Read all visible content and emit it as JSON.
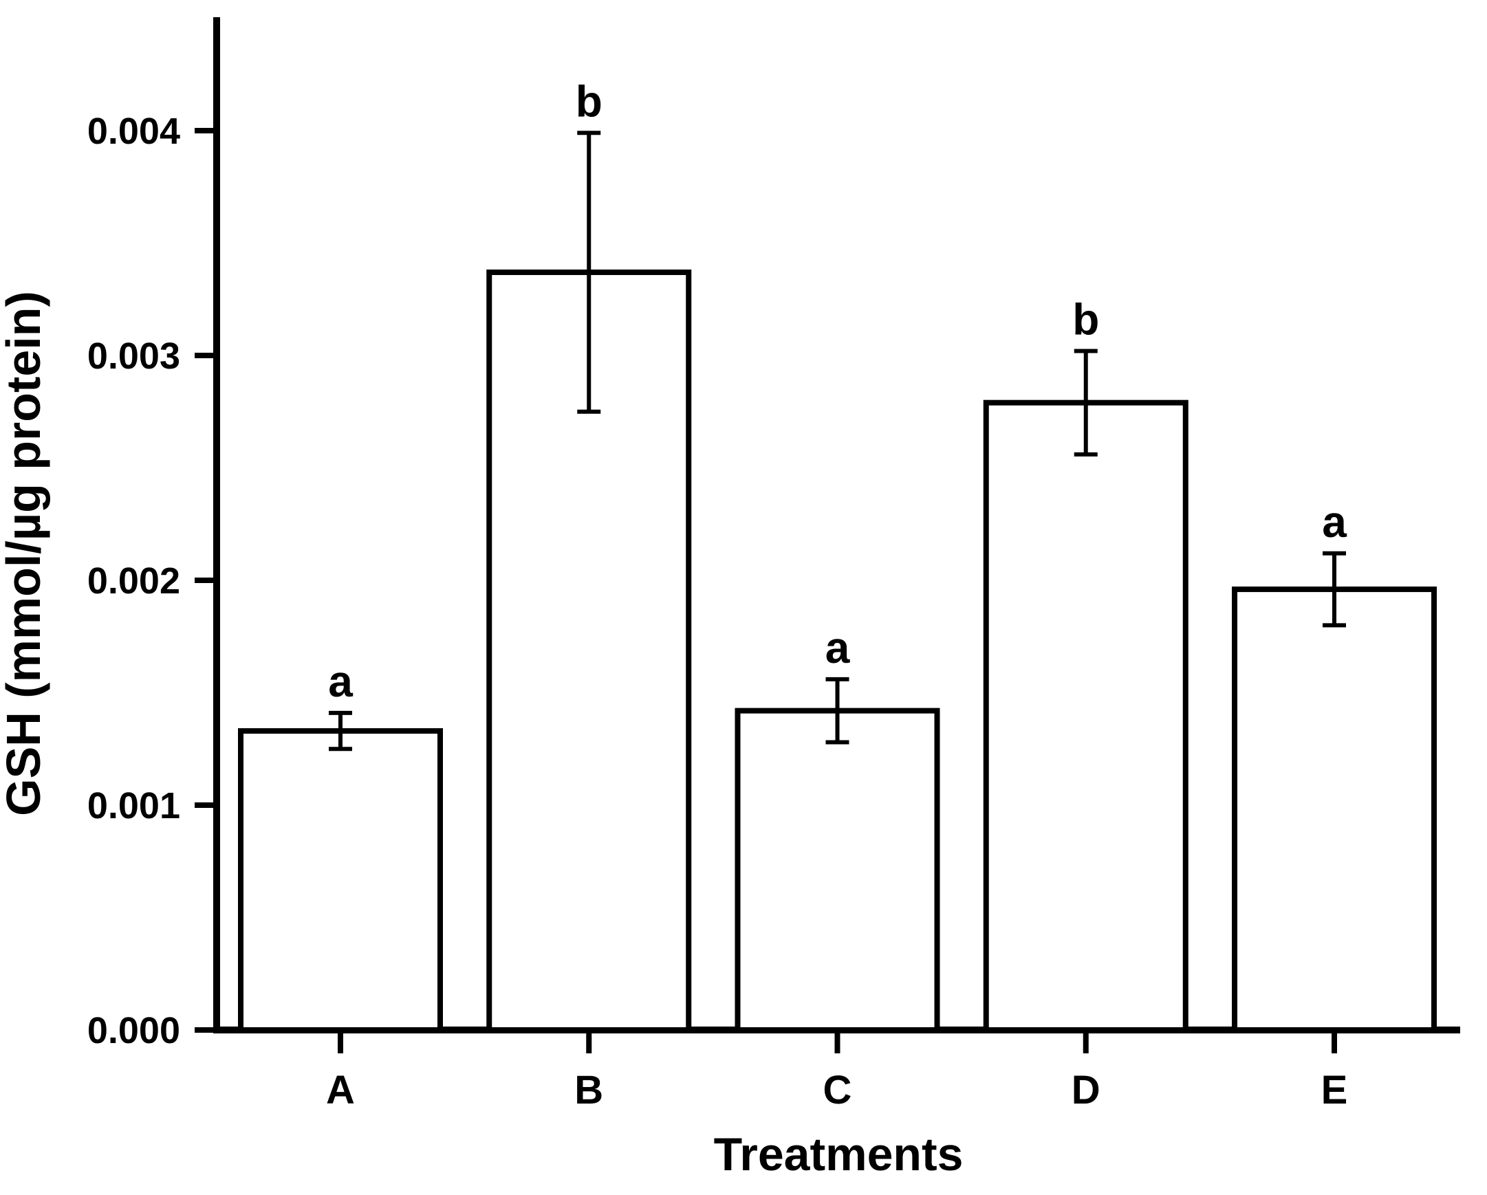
{
  "figure": {
    "background_color": "#ffffff",
    "ink_color": "#000000"
  },
  "chart_data": {
    "type": "bar",
    "title": "",
    "categories": [
      "A",
      "B",
      "C",
      "D",
      "E"
    ],
    "series": [
      {
        "name": "GSH",
        "values": [
          0.00133,
          0.00337,
          0.00142,
          0.00279,
          0.00196
        ],
        "errors": [
          8e-05,
          0.00062,
          0.00014,
          0.00023,
          0.00016
        ],
        "significance_labels": [
          "a",
          "b",
          "a",
          "b",
          "a"
        ]
      }
    ],
    "xlabel": "Treatments",
    "ylabel": "GSH (mmol/µg protein)",
    "ylim": [
      0,
      0.0045
    ],
    "yticks": [
      0,
      0.001,
      0.002,
      0.003,
      0.004
    ],
    "ytick_labels": [
      "0.000",
      "0.001",
      "0.002",
      "0.003",
      "0.004"
    ],
    "grid": false,
    "legend": false,
    "bar_fill": "#ffffff",
    "bar_stroke": "#000000",
    "error_bar_style": "caps-both-ends"
  }
}
